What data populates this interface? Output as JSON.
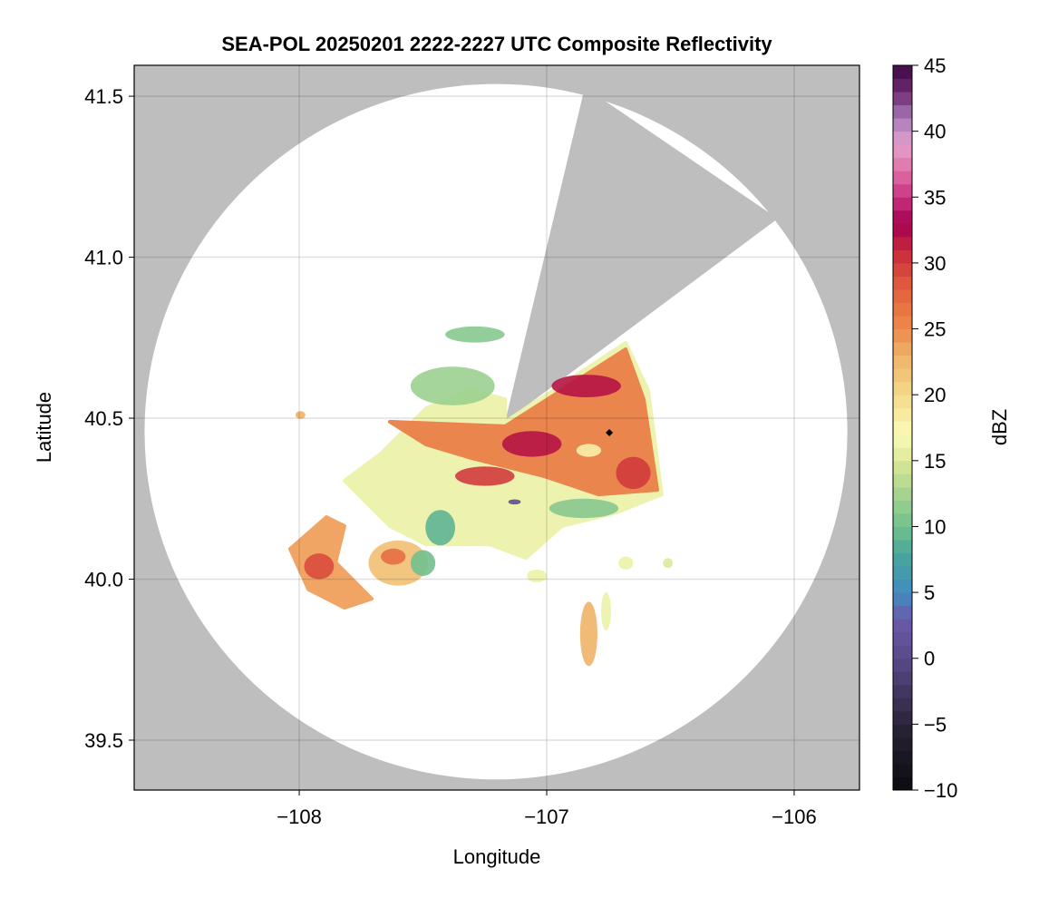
{
  "chart_data": {
    "type": "heatmap",
    "title": "SEA-POL 20250201 2222-2227 UTC Composite Reflectivity",
    "xlabel": "Longitude",
    "ylabel": "Latitude",
    "xlim": [
      -108.667,
      -105.736
    ],
    "ylim": [
      39.345,
      41.596
    ],
    "xticks": [
      -108,
      -107,
      -106
    ],
    "xtick_labels": [
      "−108",
      "−107",
      "−106"
    ],
    "yticks": [
      39.5,
      40.0,
      40.5,
      41.0,
      41.5
    ],
    "ytick_labels": [
      "39.5",
      "40.0",
      "40.5",
      "41.0",
      "41.5"
    ],
    "grid": true,
    "colorbar": {
      "label": "dBZ",
      "range": [
        -10,
        45
      ],
      "bin_width": 1,
      "ticks": [
        -10,
        -5,
        0,
        5,
        10,
        15,
        20,
        25,
        30,
        35,
        40,
        45
      ],
      "tick_labels": [
        "−10",
        "−5",
        "0",
        "5",
        "10",
        "15",
        "20",
        "25",
        "30",
        "35",
        "40",
        "45"
      ],
      "stops": [
        [
          -10,
          "#0a0a0f"
        ],
        [
          -5,
          "#2a2438"
        ],
        [
          0,
          "#5a4a8a"
        ],
        [
          3,
          "#6a5aaa"
        ],
        [
          5,
          "#3f8cc0"
        ],
        [
          8,
          "#4aa89a"
        ],
        [
          10,
          "#72c08e"
        ],
        [
          13,
          "#b0d890"
        ],
        [
          15,
          "#dce898"
        ],
        [
          17,
          "#fbfbb8"
        ],
        [
          20,
          "#f4d98a"
        ],
        [
          23,
          "#efb268"
        ],
        [
          25,
          "#ee8a4a"
        ],
        [
          28,
          "#e2603e"
        ],
        [
          31,
          "#c8283c"
        ],
        [
          33,
          "#a3004f"
        ],
        [
          35,
          "#c93280"
        ],
        [
          37,
          "#e070a8"
        ],
        [
          39,
          "#e3a0cc"
        ],
        [
          41,
          "#a87ab8"
        ],
        [
          43,
          "#6e2a70"
        ],
        [
          45,
          "#3c0845"
        ]
      ]
    },
    "no_data_color": "#bebebe",
    "coverage": {
      "center": [
        -107.205,
        40.458
      ],
      "radius_deg": [
        1.42,
        1.08
      ],
      "blocked_sector": [
        [
          -107.168,
          40.489
        ],
        [
          -106.846,
          41.528
        ],
        [
          -106.066,
          41.12
        ]
      ]
    },
    "echoes": [
      {
        "shape": "polygon",
        "dbz": 16,
        "points": [
          [
            -107.67,
            40.39
          ],
          [
            -107.487,
            40.531
          ],
          [
            -107.304,
            40.587
          ],
          [
            -107.168,
            40.559
          ],
          [
            -107.168,
            40.489
          ],
          [
            -106.681,
            40.734
          ],
          [
            -106.59,
            40.587
          ],
          [
            -106.535,
            40.263
          ],
          [
            -106.718,
            40.207
          ],
          [
            -106.938,
            40.165
          ],
          [
            -107.084,
            40.066
          ],
          [
            -107.231,
            40.108
          ],
          [
            -107.487,
            40.108
          ],
          [
            -107.634,
            40.165
          ],
          [
            -107.817,
            40.306
          ]
        ]
      },
      {
        "shape": "ellipse",
        "dbz": 12,
        "center": [
          -107.38,
          40.6
        ],
        "r": [
          0.17,
          0.06
        ]
      },
      {
        "shape": "ellipse",
        "dbz": 11,
        "center": [
          -107.29,
          40.76
        ],
        "r": [
          0.12,
          0.025
        ]
      },
      {
        "shape": "ellipse",
        "dbz": 11,
        "center": [
          -106.85,
          40.22
        ],
        "r": [
          0.14,
          0.03
        ]
      },
      {
        "shape": "polygon",
        "dbz": 26,
        "points": [
          [
            -107.634,
            40.489
          ],
          [
            -107.168,
            40.475
          ],
          [
            -106.681,
            40.714
          ],
          [
            -106.608,
            40.559
          ],
          [
            -106.553,
            40.277
          ],
          [
            -106.791,
            40.263
          ],
          [
            -107.011,
            40.32
          ],
          [
            -107.304,
            40.376
          ],
          [
            -107.487,
            40.418
          ]
        ]
      },
      {
        "shape": "ellipse",
        "dbz": 32,
        "center": [
          -107.06,
          40.42
        ],
        "r": [
          0.12,
          0.04
        ]
      },
      {
        "shape": "ellipse",
        "dbz": 32,
        "center": [
          -106.84,
          40.6
        ],
        "r": [
          0.14,
          0.035
        ]
      },
      {
        "shape": "ellipse",
        "dbz": 30,
        "center": [
          -106.65,
          40.33
        ],
        "r": [
          0.07,
          0.05
        ]
      },
      {
        "shape": "ellipse",
        "dbz": 30,
        "center": [
          -107.25,
          40.32
        ],
        "r": [
          0.12,
          0.03
        ]
      },
      {
        "shape": "ellipse",
        "dbz": 18,
        "center": [
          -106.83,
          40.4
        ],
        "r": [
          0.05,
          0.02
        ]
      },
      {
        "shape": "ellipse",
        "dbz": 9,
        "center": [
          -107.43,
          40.16
        ],
        "r": [
          0.06,
          0.055
        ]
      },
      {
        "shape": "ellipse",
        "dbz": 1,
        "center": [
          -107.13,
          40.24
        ],
        "r": [
          0.025,
          0.008
        ]
      },
      {
        "shape": "polygon",
        "dbz": 24,
        "points": [
          [
            -108.037,
            40.094
          ],
          [
            -107.89,
            40.193
          ],
          [
            -107.817,
            40.165
          ],
          [
            -107.853,
            40.052
          ],
          [
            -107.707,
            39.939
          ],
          [
            -107.817,
            39.911
          ],
          [
            -107.963,
            39.968
          ]
        ]
      },
      {
        "shape": "ellipse",
        "dbz": 29,
        "center": [
          -107.92,
          40.04
        ],
        "r": [
          0.06,
          0.04
        ]
      },
      {
        "shape": "ellipse",
        "dbz": 22,
        "center": [
          -107.6,
          40.05
        ],
        "r": [
          0.12,
          0.07
        ]
      },
      {
        "shape": "ellipse",
        "dbz": 10,
        "center": [
          -107.5,
          40.05
        ],
        "r": [
          0.05,
          0.04
        ]
      },
      {
        "shape": "ellipse",
        "dbz": 27,
        "center": [
          -107.62,
          40.07
        ],
        "r": [
          0.05,
          0.025
        ]
      },
      {
        "shape": "ellipse",
        "dbz": 23,
        "center": [
          -106.83,
          39.83
        ],
        "r": [
          0.035,
          0.1
        ]
      },
      {
        "shape": "ellipse",
        "dbz": 16,
        "center": [
          -106.76,
          39.9
        ],
        "r": [
          0.02,
          0.06
        ]
      },
      {
        "shape": "ellipse",
        "dbz": 23,
        "center": [
          -107.995,
          40.51
        ],
        "r": [
          0.02,
          0.012
        ]
      },
      {
        "shape": "ellipse",
        "dbz": 16,
        "center": [
          -107.04,
          40.01
        ],
        "r": [
          0.04,
          0.02
        ]
      },
      {
        "shape": "ellipse",
        "dbz": 16,
        "center": [
          -106.68,
          40.05
        ],
        "r": [
          0.03,
          0.02
        ]
      },
      {
        "shape": "ellipse",
        "dbz": 15,
        "center": [
          -106.51,
          40.05
        ],
        "r": [
          0.02,
          0.015
        ]
      }
    ],
    "marker": {
      "symbol": "diamond",
      "lon": -106.747,
      "lat": 40.455,
      "color": "#000000"
    }
  }
}
